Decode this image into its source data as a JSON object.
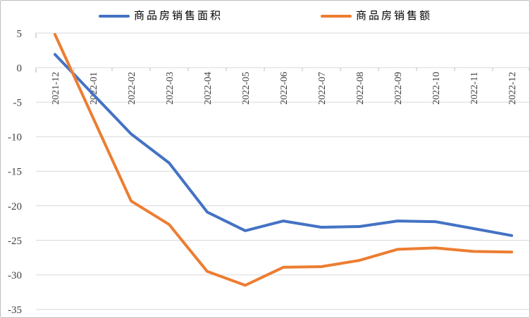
{
  "chart_data": {
    "type": "line",
    "title": "",
    "xlabel": "",
    "ylabel": "",
    "x": [
      "2021-12",
      "2022-01",
      "2022-02",
      "2022-03",
      "2022-04",
      "2022-05",
      "2022-06",
      "2022-07",
      "2022-08",
      "2022-09",
      "2022-10",
      "2022-11",
      "2022-12"
    ],
    "series": [
      {
        "id": "area",
        "name": "商品房销售面积",
        "color": "#4472C4",
        "values": [
          1.9,
          null,
          -9.6,
          -13.8,
          -20.9,
          -23.6,
          -22.2,
          -23.1,
          -23.0,
          -22.2,
          -22.3,
          -23.3,
          -24.3
        ]
      },
      {
        "id": "amount",
        "name": "商品房销售额",
        "color": "#ED7D31",
        "values": [
          4.8,
          null,
          -19.3,
          -22.7,
          -29.5,
          -31.5,
          -28.9,
          -28.8,
          -27.9,
          -26.3,
          -26.1,
          -26.6,
          -26.7
        ]
      }
    ],
    "ylim": [
      -35,
      5
    ],
    "yticks": [
      5,
      0,
      -5,
      -10,
      -15,
      -20,
      -25,
      -30,
      -35
    ],
    "ytick_labels": [
      "5",
      "0",
      "-5",
      "-10",
      "-15",
      "-20",
      "-25",
      "-30",
      "-35"
    ],
    "grid": true,
    "legend_position": "top",
    "style": {
      "grid_color": "#D9D9D9",
      "tick_color": "#BFBFBF",
      "axis_label_color": "#404040",
      "background": "#FFFFFF",
      "border_color": "#BDBDBD",
      "line_width": 4
    }
  }
}
